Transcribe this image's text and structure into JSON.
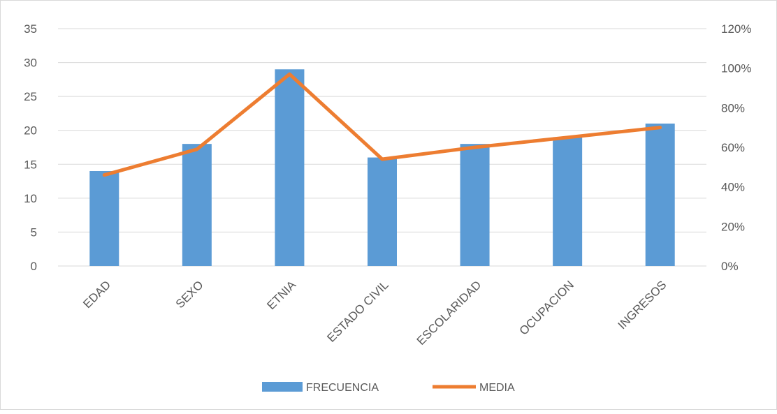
{
  "chart_data": {
    "type": "bar",
    "title": "",
    "categories": [
      "EDAD",
      "SEXO",
      "ETNIA",
      "ESTADO CIVIL",
      "ESCOLARIDAD",
      "OCUPACION",
      "INGRESOS"
    ],
    "series": [
      {
        "name": "FRECUENCIA",
        "type": "bar",
        "axis": "left",
        "color": "#5b9bd5",
        "values": [
          14,
          18,
          29,
          16,
          18,
          19,
          21
        ]
      },
      {
        "name": "MEDIA",
        "type": "line",
        "axis": "right",
        "color": "#ed7d31",
        "values": [
          0.46,
          0.59,
          0.97,
          0.54,
          0.6,
          0.65,
          0.7
        ]
      }
    ],
    "y_left": {
      "min": 0,
      "max": 35,
      "step": 5,
      "tick_labels": [
        "0",
        "5",
        "10",
        "15",
        "20",
        "25",
        "30",
        "35"
      ]
    },
    "y_right": {
      "min": 0,
      "max": 1.2,
      "step": 0.2,
      "tick_labels": [
        "0%",
        "20%",
        "40%",
        "60%",
        "80%",
        "100%",
        "120%"
      ]
    },
    "grid": true,
    "legend": {
      "position": "bottom",
      "entries": [
        "FRECUENCIA",
        "MEDIA"
      ]
    },
    "colors": {
      "grid": "#d9d9d9",
      "text": "#595959"
    }
  }
}
